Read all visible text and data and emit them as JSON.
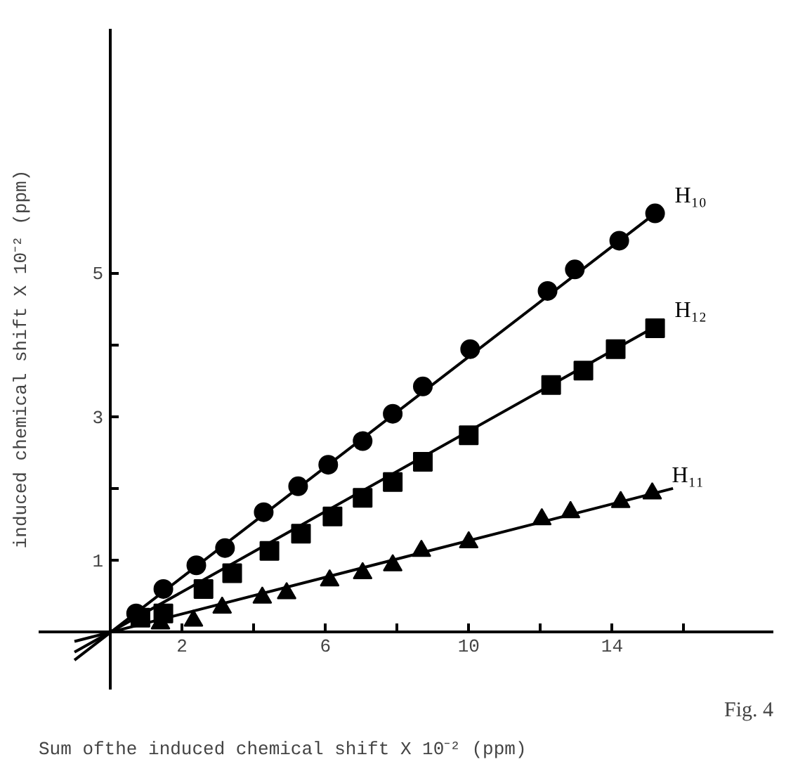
{
  "chart_data": {
    "type": "scatter",
    "xlabel": "Sum ofthe induced chemical shift X 10⁻² (ppm)",
    "ylabel": "induced chemical shift X 10⁻² (ppm)",
    "annotations": [
      "Fig. 4"
    ],
    "xlim": [
      -2,
      18.5
    ],
    "ylim": [
      -0.8,
      8.4
    ],
    "xticks": [
      2,
      {
        "value": 4,
        "label": null
      },
      6,
      {
        "value": 8,
        "label": null
      },
      10,
      {
        "value": 12,
        "label": null
      },
      14,
      {
        "value": 16,
        "label": null
      }
    ],
    "yticks": [
      1,
      {
        "value": 2,
        "label": null
      },
      3,
      {
        "value": 4,
        "label": null
      },
      5
    ],
    "grid": false,
    "legend": false,
    "series": [
      {
        "name": "H₁₀",
        "color": "#000000",
        "marker": "circle",
        "x": [
          0.72,
          1.48,
          2.4,
          3.2,
          4.28,
          5.24,
          6.08,
          7.04,
          7.88,
          8.72,
          10.04,
          12.2,
          12.96,
          14.2,
          15.2
        ],
        "values": [
          0.26,
          0.6,
          0.93,
          1.17,
          1.67,
          2.03,
          2.33,
          2.66,
          3.04,
          3.42,
          3.94,
          4.75,
          5.05,
          5.45,
          5.83
        ]
      },
      {
        "name": "H₁₂",
        "color": "#000000",
        "marker": "square",
        "x": [
          0.84,
          1.48,
          2.6,
          3.4,
          4.44,
          5.32,
          6.2,
          7.04,
          7.88,
          8.72,
          10.0,
          12.3,
          13.2,
          14.1,
          15.2
        ],
        "values": [
          0.2,
          0.26,
          0.6,
          0.82,
          1.13,
          1.37,
          1.61,
          1.87,
          2.09,
          2.37,
          2.74,
          3.44,
          3.64,
          3.94,
          4.23
        ]
      },
      {
        "name": "H₁₁",
        "color": "#000000",
        "marker": "triangle",
        "x": [
          1.4,
          2.32,
          3.12,
          4.24,
          4.92,
          6.12,
          7.04,
          7.88,
          8.68,
          10.0,
          12.04,
          12.84,
          14.24,
          15.12
        ],
        "values": [
          0.12,
          0.16,
          0.34,
          0.48,
          0.54,
          0.72,
          0.82,
          0.93,
          1.13,
          1.25,
          1.57,
          1.67,
          1.81,
          1.93
        ]
      },
      {
        "type": "line",
        "color": "#000000",
        "x": [
          -1,
          15.2
        ],
        "values": [
          -0.39,
          5.83
        ]
      },
      {
        "type": "line",
        "color": "#000000",
        "x": [
          -1,
          15.3
        ],
        "values": [
          -0.28,
          4.28
        ]
      },
      {
        "type": "line",
        "color": "#000000",
        "x": [
          -1,
          15.7
        ],
        "values": [
          -0.13,
          2.0
        ]
      }
    ]
  }
}
